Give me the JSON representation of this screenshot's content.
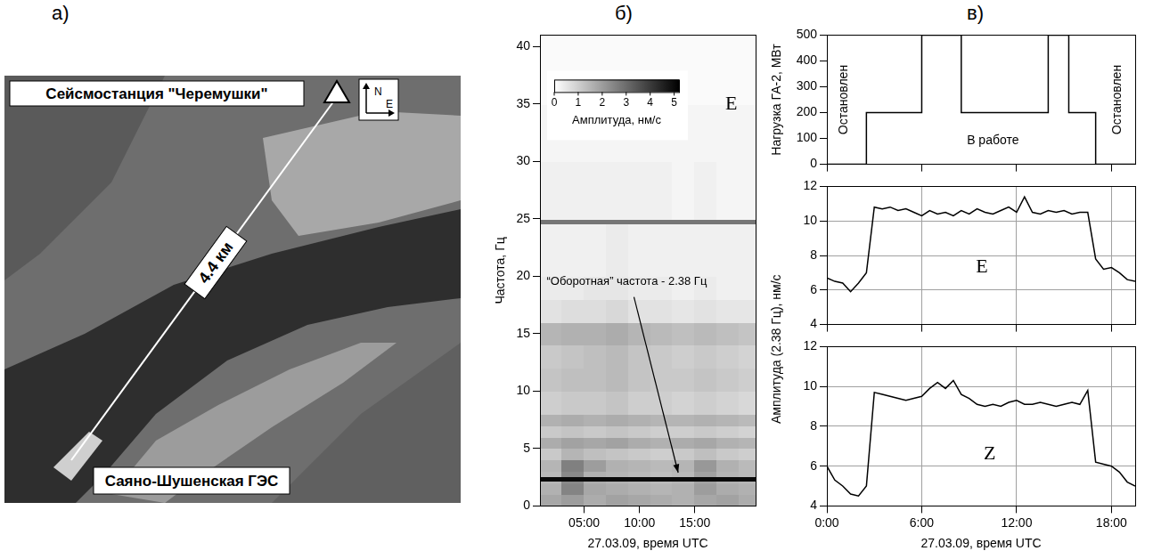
{
  "panel_labels": [
    "а)",
    "б)",
    "в)"
  ],
  "map": {
    "station": "Сейсмостанция \"Черемушки\"",
    "distance": "4.4 км",
    "dam": "Саяно-Шушенская ГЭС",
    "compass": [
      "N",
      "E"
    ]
  },
  "chart_data": [
    {
      "type": "heatmap",
      "title": "E",
      "x_label": "27.03.09, время UTC",
      "y_label": "Частота, Гц",
      "xlim": [
        1,
        20.5
      ],
      "xticks": [
        {
          "value": 5,
          "label": "05:00"
        },
        {
          "value": 10,
          "label": "10:00"
        },
        {
          "value": 15,
          "label": "15:00"
        }
      ],
      "ylim": [
        0,
        41
      ],
      "yticks": [
        0,
        5,
        10,
        15,
        20,
        25,
        30,
        35,
        40
      ],
      "x_edges": [
        1,
        3,
        5,
        7,
        9,
        11,
        13,
        15,
        17,
        19,
        20.5
      ],
      "y_edges": [
        0,
        1,
        2,
        2.2,
        2.6,
        3,
        4,
        5,
        6,
        7,
        8,
        10,
        12,
        14,
        16,
        18,
        20,
        24.6,
        25,
        30,
        35,
        41
      ],
      "values": [
        [
          1.8,
          2.0,
          1.7,
          1.9,
          1.8,
          1.7,
          1.6,
          1.8,
          1.9,
          1.7
        ],
        [
          1.6,
          2.5,
          1.8,
          1.7,
          1.6,
          1.5,
          1.6,
          2.0,
          1.7,
          1.6
        ],
        [
          1.5,
          2.4,
          1.7,
          1.6,
          1.5,
          1.4,
          1.5,
          1.9,
          1.6,
          1.5
        ],
        [
          5.0,
          5.0,
          5.0,
          5.0,
          5.0,
          5.0,
          5.0,
          5.0,
          5.0,
          5.0
        ],
        [
          1.4,
          2.4,
          1.6,
          1.5,
          1.4,
          1.3,
          1.4,
          1.9,
          1.5,
          1.4
        ],
        [
          1.5,
          2.6,
          2.0,
          1.6,
          1.5,
          1.4,
          1.5,
          2.1,
          1.6,
          1.4
        ],
        [
          1.1,
          1.5,
          1.3,
          1.2,
          1.1,
          1.0,
          1.1,
          1.3,
          1.1,
          1.0
        ],
        [
          1.7,
          1.9,
          1.8,
          1.9,
          1.7,
          1.6,
          1.7,
          1.8,
          1.6,
          1.5
        ],
        [
          1.1,
          1.2,
          1.1,
          1.2,
          1.1,
          1.0,
          1.0,
          1.1,
          1.0,
          0.9
        ],
        [
          1.6,
          1.7,
          1.6,
          1.7,
          1.6,
          1.5,
          1.5,
          1.6,
          1.5,
          1.4
        ],
        [
          1.0,
          1.1,
          1.1,
          1.2,
          1.0,
          1.0,
          0.9,
          1.0,
          0.9,
          0.8
        ],
        [
          1.2,
          1.3,
          1.3,
          1.4,
          1.2,
          1.1,
          1.1,
          1.2,
          1.1,
          1.0
        ],
        [
          1.1,
          1.2,
          1.3,
          1.4,
          1.2,
          1.1,
          1.0,
          1.1,
          1.0,
          0.9
        ],
        [
          1.5,
          1.6,
          1.6,
          1.7,
          1.5,
          1.4,
          1.3,
          1.4,
          1.3,
          1.2
        ],
        [
          0.6,
          0.7,
          0.7,
          0.8,
          0.6,
          0.6,
          0.5,
          0.6,
          0.5,
          0.5
        ],
        [
          0.4,
          0.4,
          0.5,
          0.5,
          0.4,
          0.4,
          0.3,
          0.4,
          0.3,
          0.3
        ],
        [
          0.3,
          0.3,
          0.3,
          0.4,
          0.3,
          0.3,
          0.3,
          0.3,
          0.3,
          0.3
        ],
        [
          2.8,
          2.8,
          2.8,
          2.8,
          2.8,
          2.8,
          2.8,
          2.8,
          2.8,
          2.8
        ],
        [
          0.3,
          0.3,
          0.3,
          0.3,
          0.3,
          0.3,
          0.2,
          0.3,
          0.2,
          0.2
        ],
        [
          0.2,
          0.2,
          0.2,
          0.2,
          0.2,
          0.2,
          0.2,
          0.2,
          0.2,
          0.2
        ],
        [
          0.1,
          0.1,
          0.1,
          0.1,
          0.1,
          0.1,
          0.1,
          0.1,
          0.1,
          0.1
        ]
      ],
      "colorbar": {
        "label": "Амплитуда, нм/с",
        "range": [
          0,
          5.2
        ],
        "ticks": [
          0,
          1,
          2,
          3,
          4,
          5
        ]
      },
      "annotations": [
        "“Оборотная” частота - 2.38 Гц"
      ],
      "grid": false
    },
    {
      "type": "line",
      "y_label": "Нагрузка ГА-2, МВт",
      "line_style": "step",
      "color": "#000000",
      "x": [
        0,
        2.5,
        6,
        8.5,
        14,
        15.3,
        17,
        19.5
      ],
      "values": [
        0,
        200,
        500,
        200,
        500,
        200,
        0,
        0
      ],
      "xlim": [
        0,
        19.5
      ],
      "xticks": [
        {
          "value": 0,
          "label": "0:00"
        },
        {
          "value": 6,
          "label": "6:00"
        },
        {
          "value": 12,
          "label": "12:00"
        },
        {
          "value": 18,
          "label": "18:00"
        }
      ],
      "ylim": [
        0,
        500
      ],
      "yticks": [
        0,
        100,
        200,
        300,
        400,
        500
      ],
      "annotations": [
        "Остановлен",
        "В работе",
        "Остановлен"
      ],
      "grid": false,
      "tick_labels": "y"
    },
    {
      "type": "line",
      "title": "E",
      "y_label": "Амплитуда (2.38 Гц), нм/с",
      "color": "#000000",
      "x": [
        0,
        0.5,
        1,
        1.5,
        2,
        2.5,
        3,
        3.5,
        4,
        4.5,
        5,
        5.5,
        6,
        6.5,
        7,
        7.5,
        8,
        8.5,
        9,
        9.5,
        10,
        10.5,
        11,
        11.5,
        12,
        12.5,
        13,
        13.5,
        14,
        14.5,
        15,
        15.5,
        16,
        16.5,
        17,
        17.5,
        18,
        18.5,
        19,
        19.5
      ],
      "values": [
        6.7,
        6.5,
        6.4,
        5.9,
        6.4,
        7.0,
        10.8,
        10.7,
        10.8,
        10.6,
        10.7,
        10.5,
        10.3,
        10.6,
        10.4,
        10.5,
        10.3,
        10.6,
        10.4,
        10.7,
        10.5,
        10.4,
        10.6,
        10.8,
        10.5,
        11.4,
        10.5,
        10.4,
        10.6,
        10.5,
        10.6,
        10.4,
        10.5,
        10.5,
        7.8,
        7.2,
        7.3,
        7.0,
        6.6,
        6.5
      ],
      "xlim": [
        0,
        19.5
      ],
      "xticks": [
        {
          "value": 0,
          "label": "0:00"
        },
        {
          "value": 6,
          "label": "6:00"
        },
        {
          "value": 12,
          "label": "12:00"
        },
        {
          "value": 18,
          "label": "18:00"
        }
      ],
      "ylim": [
        4,
        12
      ],
      "yticks": [
        4,
        6,
        8,
        10,
        12
      ],
      "grid": true,
      "tick_labels": "y"
    },
    {
      "type": "line",
      "title": "Z",
      "x_label": "27.03.09, время UTC",
      "color": "#000000",
      "x": [
        0,
        0.5,
        1,
        1.5,
        2,
        2.5,
        3,
        3.5,
        4,
        4.5,
        5,
        5.5,
        6,
        6.5,
        7,
        7.5,
        8,
        8.5,
        9,
        9.5,
        10,
        10.5,
        11,
        11.5,
        12,
        12.5,
        13,
        13.5,
        14,
        14.5,
        15,
        15.5,
        16,
        16.5,
        17,
        17.5,
        18,
        18.5,
        19,
        19.5
      ],
      "values": [
        6.0,
        5.3,
        5.0,
        4.6,
        4.5,
        5.0,
        9.7,
        9.6,
        9.5,
        9.4,
        9.3,
        9.4,
        9.5,
        9.9,
        10.2,
        9.9,
        10.3,
        9.6,
        9.4,
        9.1,
        9.0,
        9.1,
        9.0,
        9.2,
        9.3,
        9.1,
        9.1,
        9.2,
        9.1,
        9.0,
        9.1,
        9.2,
        9.1,
        9.8,
        6.2,
        6.1,
        6.0,
        5.7,
        5.2,
        5.0
      ],
      "xlim": [
        0,
        19.5
      ],
      "xticks": [
        {
          "value": 0,
          "label": "0:00"
        },
        {
          "value": 6,
          "label": "6:00"
        },
        {
          "value": 12,
          "label": "12:00"
        },
        {
          "value": 18,
          "label": "18:00"
        }
      ],
      "ylim": [
        4,
        12
      ],
      "yticks": [
        4,
        6,
        8,
        10,
        12
      ],
      "grid": true
    }
  ]
}
